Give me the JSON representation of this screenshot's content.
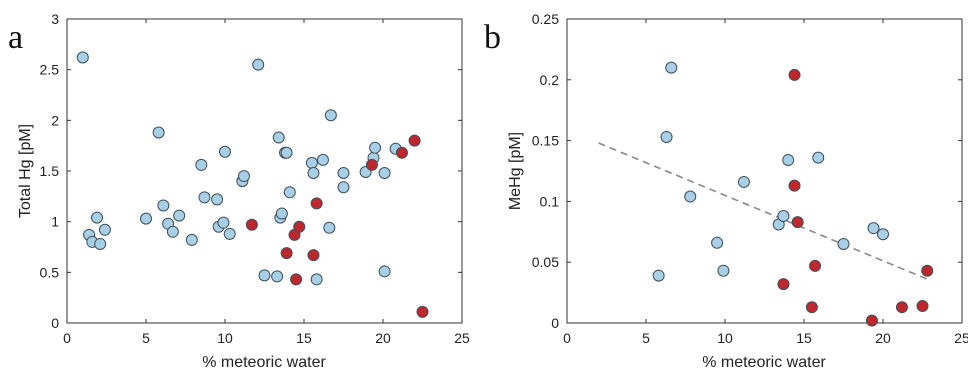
{
  "chart_data": [
    {
      "panel": "a",
      "type": "scatter",
      "xlabel": "% meteoric water",
      "ylabel": "Total Hg [pM]",
      "xlim": [
        0,
        25
      ],
      "ylim": [
        0,
        3
      ],
      "xticks": [
        "0",
        "5",
        "10",
        "15",
        "20",
        "25"
      ],
      "yticks": [
        "0",
        "0.5",
        "1",
        "1.5",
        "2",
        "2.5",
        "3"
      ],
      "grid": false,
      "colors": {
        "blue": "#a9cfe6",
        "red": "#c0272d"
      },
      "series": [
        {
          "color": "blue",
          "points": [
            [
              1.0,
              2.62
            ],
            [
              1.4,
              0.87
            ],
            [
              1.6,
              0.8
            ],
            [
              1.9,
              1.04
            ],
            [
              2.1,
              0.78
            ],
            [
              2.4,
              0.92
            ],
            [
              5.0,
              1.03
            ],
            [
              5.8,
              1.88
            ],
            [
              6.1,
              1.16
            ],
            [
              6.4,
              0.98
            ],
            [
              6.7,
              0.9
            ],
            [
              7.1,
              1.06
            ],
            [
              7.9,
              0.82
            ],
            [
              8.5,
              1.56
            ],
            [
              8.7,
              1.24
            ],
            [
              9.5,
              1.22
            ],
            [
              9.6,
              0.95
            ],
            [
              9.9,
              0.99
            ],
            [
              10.0,
              1.69
            ],
            [
              10.3,
              0.88
            ],
            [
              11.1,
              1.4
            ],
            [
              11.2,
              1.45
            ],
            [
              12.1,
              2.55
            ],
            [
              12.5,
              0.47
            ],
            [
              13.3,
              0.46
            ],
            [
              13.4,
              1.83
            ],
            [
              13.5,
              1.04
            ],
            [
              13.6,
              1.08
            ],
            [
              13.8,
              1.68
            ],
            [
              13.9,
              1.68
            ],
            [
              14.1,
              1.29
            ],
            [
              15.5,
              1.58
            ],
            [
              15.6,
              1.48
            ],
            [
              15.8,
              0.43
            ],
            [
              16.2,
              1.61
            ],
            [
              16.6,
              0.94
            ],
            [
              16.7,
              2.05
            ],
            [
              17.5,
              1.48
            ],
            [
              17.5,
              1.34
            ],
            [
              18.9,
              1.49
            ],
            [
              19.4,
              1.63
            ],
            [
              19.5,
              1.73
            ],
            [
              20.1,
              1.48
            ],
            [
              20.1,
              0.51
            ],
            [
              20.8,
              1.72
            ]
          ]
        },
        {
          "color": "red",
          "points": [
            [
              11.7,
              0.97
            ],
            [
              13.9,
              0.69
            ],
            [
              14.4,
              0.87
            ],
            [
              14.5,
              0.43
            ],
            [
              14.7,
              0.95
            ],
            [
              15.6,
              0.67
            ],
            [
              15.8,
              1.18
            ],
            [
              19.3,
              1.56
            ],
            [
              21.2,
              1.68
            ],
            [
              22.0,
              1.8
            ],
            [
              22.5,
              0.11
            ]
          ]
        }
      ]
    },
    {
      "panel": "b",
      "type": "scatter",
      "xlabel": "% meteoric water",
      "ylabel": "MeHg [pM]",
      "xlim": [
        0,
        25
      ],
      "ylim": [
        0,
        0.25
      ],
      "xticks": [
        "0",
        "5",
        "10",
        "15",
        "20",
        "25"
      ],
      "yticks": [
        "0",
        "0.05",
        "0.1",
        "0.15",
        "0.2",
        "0.25"
      ],
      "grid": false,
      "colors": {
        "blue": "#a9cfe6",
        "red": "#c0272d",
        "trend": "#888888"
      },
      "trendline": {
        "style": "dashed",
        "x": [
          2,
          23
        ],
        "y": [
          0.148,
          0.035
        ]
      },
      "series": [
        {
          "color": "blue",
          "points": [
            [
              5.8,
              0.039
            ],
            [
              6.3,
              0.153
            ],
            [
              6.6,
              0.21
            ],
            [
              7.8,
              0.104
            ],
            [
              9.5,
              0.066
            ],
            [
              9.9,
              0.043
            ],
            [
              11.2,
              0.116
            ],
            [
              13.4,
              0.081
            ],
            [
              13.7,
              0.088
            ],
            [
              14.0,
              0.134
            ],
            [
              15.9,
              0.136
            ],
            [
              17.5,
              0.065
            ],
            [
              19.4,
              0.078
            ],
            [
              20.0,
              0.073
            ]
          ]
        },
        {
          "color": "red",
          "points": [
            [
              13.7,
              0.032
            ],
            [
              14.4,
              0.204
            ],
            [
              14.4,
              0.113
            ],
            [
              14.6,
              0.083
            ],
            [
              15.5,
              0.013
            ],
            [
              15.7,
              0.047
            ],
            [
              19.3,
              0.002
            ],
            [
              21.2,
              0.013
            ],
            [
              22.5,
              0.014
            ],
            [
              22.8,
              0.043
            ]
          ]
        }
      ]
    }
  ]
}
